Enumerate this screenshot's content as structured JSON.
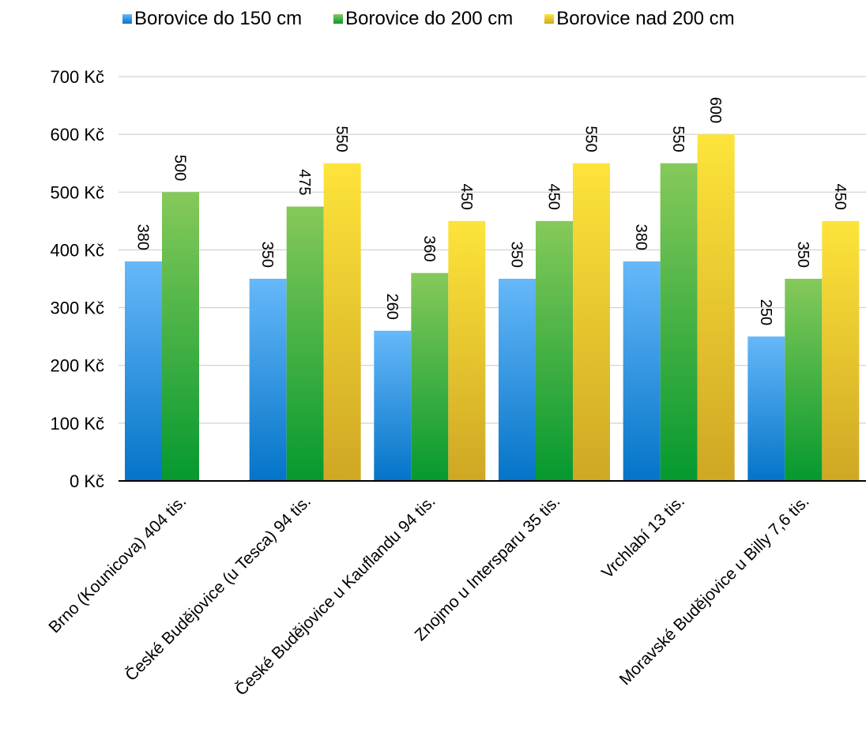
{
  "chart_data": {
    "type": "bar",
    "categories": [
      "Brno (Kounicova) 404 tis.",
      "České Budějovice (u Tesca) 94 tis.",
      "České Budějovice u Kauflandu 94 tis.",
      "Znojmo u Intersparu 35 tis.",
      "Vrchlabí 13 tis.",
      "Moravské Budějovice u Billy 7,6 tis."
    ],
    "series": [
      {
        "name": "Borovice do 150 cm",
        "values": [
          380,
          350,
          260,
          350,
          380,
          250
        ],
        "color_top": "#66b8f9",
        "color_bottom": "#0474c8"
      },
      {
        "name": "Borovice do 200 cm",
        "values": [
          500,
          475,
          360,
          450,
          550,
          350
        ],
        "color_top": "#86c95a",
        "color_bottom": "#05992f"
      },
      {
        "name": "Borovice nad 200 cm",
        "values": [
          null,
          550,
          450,
          550,
          600,
          450
        ],
        "color_top": "#fde43a",
        "color_bottom": "#cfa724"
      }
    ],
    "y_ticks": [
      "0 Kč",
      "100 Kč",
      "200 Kč",
      "300 Kč",
      "400 Kč",
      "500 Kč",
      "600 Kč",
      "700 Kč"
    ],
    "ylim": [
      0,
      700
    ],
    "grid": true,
    "legend_position": "top",
    "data_labels": "rotated-vertical"
  }
}
